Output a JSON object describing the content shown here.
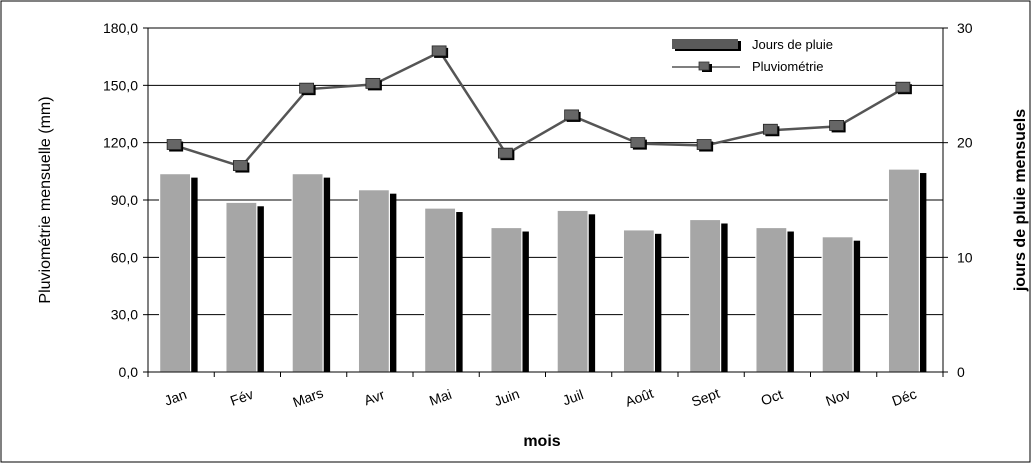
{
  "chart_data": {
    "type": "bar+line",
    "categories": [
      "Jan",
      "Fév",
      "Mars",
      "Avr",
      "Mai",
      "Juin",
      "Juil",
      "Août",
      "Sept",
      "Oct",
      "Nov",
      "Déc"
    ],
    "series": [
      {
        "name": "Jours de pluie",
        "type": "bar",
        "axis": "right",
        "values": [
          17.3,
          14.8,
          17.3,
          15.9,
          14.3,
          12.6,
          14.1,
          12.4,
          13.3,
          12.6,
          11.8,
          17.7
        ]
      },
      {
        "name": "Pluviométrie",
        "type": "line",
        "axis": "left",
        "values": [
          118.5,
          107.5,
          148.0,
          150.5,
          167.5,
          114.0,
          134.0,
          119.5,
          118.5,
          126.5,
          128.5,
          148.5
        ]
      }
    ],
    "xlabel": "mois",
    "ylabel_left": "Pluviométrie mensuelle (mm)",
    "ylabel_right": "jours de pluie mensuels",
    "ylim_left": [
      0,
      180
    ],
    "ylim_right": [
      0,
      30
    ],
    "yticks_left": [
      "0,0",
      "30,0",
      "60,0",
      "90,0",
      "120,0",
      "150,0",
      "180,0"
    ],
    "yticks_right": [
      "0",
      "10",
      "20",
      "30"
    ],
    "grid": true,
    "legend_position": "top-right",
    "colors": {
      "bar_fill": "#a6a6a6",
      "bar_shadow": "#000000",
      "line": "#555555",
      "marker": "#666666",
      "grid": "#000000"
    }
  }
}
